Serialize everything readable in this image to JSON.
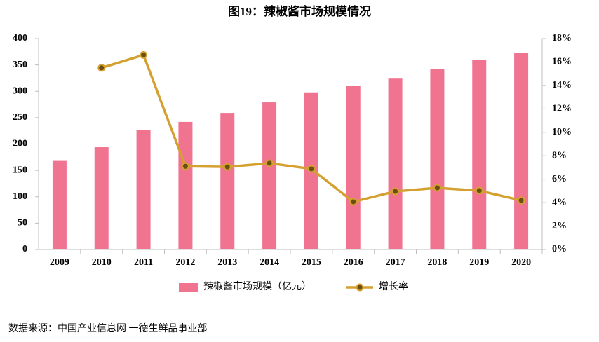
{
  "chart_data": {
    "type": "bar-line",
    "title": "图19：辣椒酱市场规模情况",
    "source": "数据来源：中国产业信息网 一德生鲜品事业部",
    "categories": [
      "2009",
      "2010",
      "2011",
      "2012",
      "2013",
      "2014",
      "2015",
      "2016",
      "2017",
      "2018",
      "2019",
      "2020"
    ],
    "series": [
      {
        "name": "辣椒酱市场规模（亿元）",
        "type": "bar",
        "color": "#f07490",
        "values": [
          168,
          194,
          226,
          242,
          259,
          279,
          298,
          310,
          324,
          342,
          359,
          373
        ]
      },
      {
        "name": "增长率",
        "type": "line",
        "axis": "y2",
        "color": "#d4a030",
        "marker_color": "#6b4f10",
        "values": [
          null,
          15.5,
          16.6,
          7.1,
          7.05,
          7.36,
          6.88,
          4.07,
          4.96,
          5.26,
          5.02,
          4.19
        ]
      }
    ],
    "ylim": [
      0,
      400
    ],
    "yticks": [
      0,
      50,
      100,
      150,
      200,
      250,
      300,
      350,
      400
    ],
    "y2lim": [
      0,
      18
    ],
    "y2ticks": [
      {
        "value": 0,
        "label": "0%"
      },
      {
        "value": 2,
        "label": "2%"
      },
      {
        "value": 4,
        "label": "4%"
      },
      {
        "value": 6,
        "label": "6%"
      },
      {
        "value": 8,
        "label": "8%"
      },
      {
        "value": 10,
        "label": "10%"
      },
      {
        "value": 12,
        "label": "12%"
      },
      {
        "value": 14,
        "label": "14%"
      },
      {
        "value": 16,
        "label": "16%"
      },
      {
        "value": 18,
        "label": "18%"
      }
    ],
    "legend": "bottom"
  }
}
